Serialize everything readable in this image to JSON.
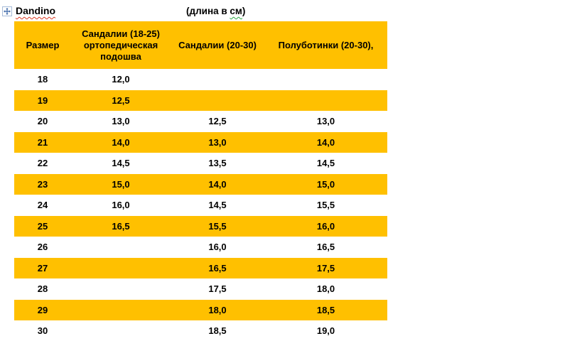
{
  "title": {
    "brand": "Dandino",
    "note_prefix": "(длина в ",
    "note_word": "см",
    "note_suffix": ")"
  },
  "table": {
    "headers": [
      "Размер",
      "Сандалии (18-25) ортопедическая подошва",
      "Сандалии (20-30)",
      "Полуботинки (20-30),"
    ],
    "rows": [
      [
        "18",
        "12,0",
        "",
        ""
      ],
      [
        "19",
        "12,5",
        "",
        ""
      ],
      [
        "20",
        "13,0",
        "12,5",
        "13,0"
      ],
      [
        "21",
        "14,0",
        "13,0",
        "14,0"
      ],
      [
        "22",
        "14,5",
        "13,5",
        "14,5"
      ],
      [
        "23",
        "15,0",
        "14,0",
        "15,0"
      ],
      [
        "24",
        "16,0",
        "14,5",
        "15,5"
      ],
      [
        "25",
        "16,5",
        "15,5",
        "16,0"
      ],
      [
        "26",
        "",
        "16,0",
        "16,5"
      ],
      [
        "27",
        "",
        "16,5",
        "17,5"
      ],
      [
        "28",
        "",
        "17,5",
        "18,0"
      ],
      [
        "29",
        "",
        "18,0",
        "18,5"
      ],
      [
        "30",
        "",
        "18,5",
        "19,0"
      ]
    ]
  },
  "colors": {
    "accent": "#FFC000",
    "spell_red": "#DB3A23",
    "grammar_green": "#2FA944",
    "handle_blue": "#3A66A8",
    "handle_border": "#A8BCD9"
  }
}
